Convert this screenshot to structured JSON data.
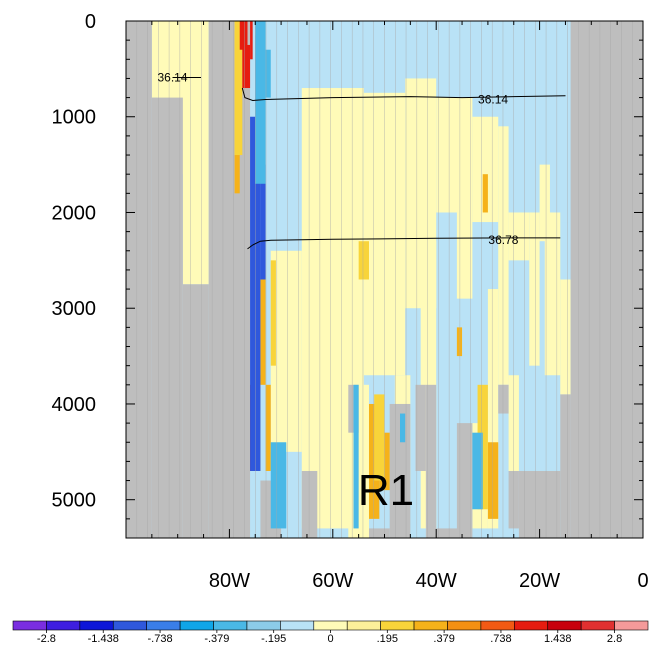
{
  "chart_data": {
    "type": "heatmap",
    "title": "",
    "xlabel": "",
    "ylabel": "",
    "x_ticks": [
      "80W",
      "60W",
      "40W",
      "20W",
      "0"
    ],
    "x_tick_values": [
      -80,
      -60,
      -40,
      -20,
      0
    ],
    "y_ticks": [
      "0",
      "1000",
      "2000",
      "3000",
      "4000",
      "5000"
    ],
    "y_tick_values": [
      0,
      1000,
      2000,
      3000,
      4000,
      5000
    ],
    "xlim": [
      -100,
      0
    ],
    "ylim": [
      5400,
      0
    ],
    "land_color": "#bebebe",
    "region_label": "R1",
    "colorbar": {
      "levels": [
        "-2.8",
        "-1.438",
        "-.738",
        "-.379",
        "-.195",
        "0",
        ".195",
        ".379",
        ".738",
        "1.438",
        "2.8"
      ],
      "colors": [
        "#7a2ee0",
        "#3e1ee0",
        "#0d16d8",
        "#2f58dc",
        "#3a7ee8",
        "#10a6e8",
        "#4ab8e6",
        "#8ccbe8",
        "#b9e2f6",
        "#fffbb8",
        "#fdf09a",
        "#f8d43a",
        "#f5b21a",
        "#f39012",
        "#f25a14",
        "#e61c10",
        "#c8000c",
        "#e03030",
        "#f59a9a"
      ]
    },
    "contours": [
      {
        "label": "36.14",
        "points": [
          [
            -91,
            590
          ],
          [
            -85.5,
            590
          ]
        ]
      },
      {
        "label": "36.14",
        "points": [
          [
            -77.5,
            700
          ],
          [
            -77,
            800
          ],
          [
            -75.5,
            830
          ],
          [
            -73,
            820
          ],
          [
            -60,
            800
          ],
          [
            -45,
            790
          ],
          [
            -35,
            800
          ],
          [
            -25,
            790
          ],
          [
            -15,
            780
          ]
        ]
      },
      {
        "label": "36.78",
        "points": [
          [
            -76.5,
            2380
          ],
          [
            -75.5,
            2340
          ],
          [
            -74,
            2300
          ],
          [
            -72,
            2290
          ],
          [
            -60,
            2280
          ],
          [
            -40,
            2270
          ],
          [
            -25,
            2265
          ],
          [
            -16,
            2265
          ]
        ]
      }
    ],
    "contour_label_positions": [
      [
        -91,
        590
      ],
      [
        -29,
        820
      ],
      [
        -27,
        2290
      ]
    ],
    "fields": {
      "light_blue": [
        [
          -82,
          0,
          -15,
          4900
        ],
        [
          -20,
          0,
          -14,
          2100
        ]
      ],
      "yellow": [
        [
          -95,
          0,
          -88,
          800
        ],
        [
          -94,
          100,
          -89,
          1200
        ],
        [
          -91,
          200,
          -88,
          1600
        ],
        [
          -89,
          0,
          -84,
          2750
        ],
        [
          -83,
          0,
          -80,
          650
        ],
        [
          -82,
          0,
          -79,
          1900
        ],
        [
          -72,
          2400,
          -66,
          4500
        ],
        [
          -66,
          700,
          -54,
          5300
        ],
        [
          -57,
          3800,
          -53,
          5500
        ],
        [
          -54,
          750,
          -46,
          3700
        ],
        [
          -46,
          600,
          -40,
          3000
        ],
        [
          -40,
          800,
          -35,
          2000
        ],
        [
          -36,
          800,
          -33,
          2900
        ],
        [
          -33,
          1000,
          -28,
          2100
        ],
        [
          -28,
          1100,
          -26,
          3800
        ],
        [
          -26,
          2000,
          -22,
          2500
        ],
        [
          -22,
          2000,
          -20,
          3600
        ],
        [
          -20,
          1500,
          -18,
          2300
        ],
        [
          -19,
          2000,
          -16,
          3700
        ],
        [
          -16,
          2700,
          -14,
          3900
        ],
        [
          -48,
          3700,
          -45,
          4800
        ],
        [
          -43,
          2300,
          -40,
          5300
        ],
        [
          -30,
          2800,
          -28,
          5300
        ],
        [
          -33,
          4200,
          -30,
          5300
        ],
        [
          -26,
          3700,
          -24,
          4700
        ]
      ],
      "gray": [
        [
          -100,
          0,
          -95,
          5400
        ],
        [
          -95,
          800,
          -89,
          5400
        ],
        [
          -89,
          2750,
          -84,
          5400
        ],
        [
          -84,
          0,
          -76,
          5400
        ],
        [
          -14,
          0,
          0,
          5400
        ],
        [
          -16,
          3900,
          -14,
          5400
        ],
        [
          -24,
          4700,
          -16,
          5400
        ],
        [
          -26,
          4700,
          -24,
          5300
        ],
        [
          -40,
          5300,
          -35,
          5400
        ],
        [
          -36,
          4200,
          -33,
          5400
        ],
        [
          -42,
          3800,
          -40,
          5400
        ],
        [
          -44,
          3800,
          -42,
          4700
        ],
        [
          -49,
          4000,
          -45,
          5400
        ],
        [
          -53,
          5300,
          -49,
          5400
        ],
        [
          -66,
          4700,
          -63,
          5400
        ],
        [
          -74,
          4800,
          -70,
          5400
        ],
        [
          -57,
          3800,
          -55,
          4300
        ],
        [
          -28,
          3800,
          -26,
          4100
        ]
      ],
      "orange": [
        [
          -79,
          100,
          -78,
          1800
        ],
        [
          -75,
          3700,
          -74,
          4700
        ],
        [
          -73,
          3800,
          -72,
          4700
        ],
        [
          -74,
          2600,
          -73,
          3800
        ],
        [
          -53,
          4000,
          -51,
          5200
        ],
        [
          -51,
          4300,
          -49,
          4900
        ],
        [
          -30,
          4400,
          -28,
          5200
        ],
        [
          -36,
          3200,
          -35,
          3500
        ],
        [
          -31,
          1600,
          -30,
          2000
        ]
      ],
      "gold": [
        [
          -79,
          0,
          -77.5,
          1400
        ],
        [
          -72,
          2500,
          -71,
          3600
        ],
        [
          -55,
          2300,
          -53,
          2700
        ],
        [
          -52,
          3900,
          -50,
          4800
        ],
        [
          -32,
          3800,
          -30,
          5100
        ]
      ],
      "red": [
        [
          -78,
          0,
          -76.5,
          300
        ],
        [
          -77.5,
          250,
          -76,
          700
        ],
        [
          -76,
          0,
          -75.5,
          400
        ],
        [
          -76,
          3800,
          -75,
          4700
        ]
      ],
      "dark_blue": [
        [
          -76,
          1000,
          -74,
          4700
        ],
        [
          -74,
          1500,
          -73,
          2700
        ],
        [
          -75,
          150,
          -74,
          900
        ]
      ],
      "mid_blue": [
        [
          -75,
          0,
          -73,
          1700
        ],
        [
          -73,
          300,
          -72,
          800
        ],
        [
          -72,
          4400,
          -69,
          5300
        ],
        [
          -56,
          3800,
          -55,
          5300
        ],
        [
          -33,
          4300,
          -31,
          5100
        ],
        [
          -47,
          4100,
          -46,
          4400
        ]
      ]
    }
  }
}
